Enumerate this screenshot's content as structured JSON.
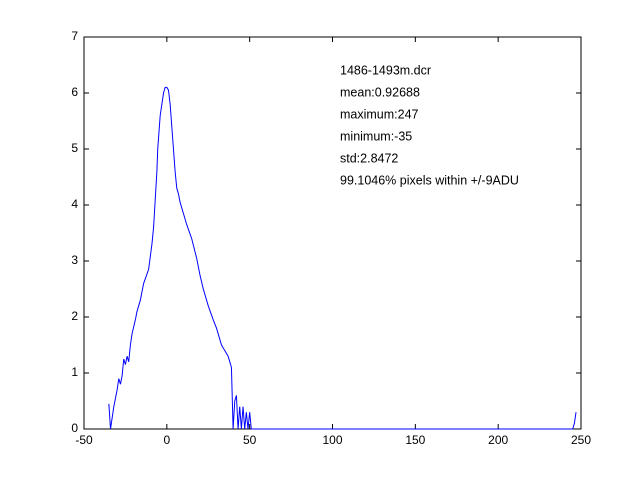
{
  "chart_data": {
    "type": "line",
    "annotations": [
      "1486-1493m.dcr",
      "mean:0.92688",
      "maximum:247",
      "minimum:-35",
      "std:2.8472",
      "99.1046% pixels within +/-9ADU"
    ],
    "series": [
      {
        "color": "#0000ff",
        "x": [
          -35,
          -34,
          -33,
          -32,
          -30,
          -29,
          -28,
          -27,
          -26,
          -25,
          -24,
          -23,
          -22,
          -21,
          -19,
          -18,
          -16,
          -14,
          -11,
          -9,
          -8,
          -7,
          -6,
          -5.5,
          -4,
          -3,
          -2,
          -1,
          0,
          1,
          2,
          3,
          4,
          5,
          6,
          7,
          8,
          10,
          12,
          15,
          18,
          20,
          22,
          25,
          28,
          30,
          33,
          35,
          37,
          38,
          39,
          40,
          41,
          42,
          43,
          44,
          45,
          46,
          47,
          48,
          49,
          50,
          51,
          245,
          246,
          247
        ],
        "values": [
          0.45,
          0,
          0.2,
          0.4,
          0.7,
          0.9,
          0.8,
          0.95,
          1.25,
          1.15,
          1.3,
          1.2,
          1.5,
          1.7,
          1.95,
          2.1,
          2.3,
          2.6,
          2.85,
          3.3,
          3.6,
          4.1,
          4.6,
          5.0,
          5.6,
          5.8,
          6.0,
          6.1,
          6.1,
          6.05,
          5.8,
          5.4,
          5.0,
          4.6,
          4.3,
          4.2,
          4.05,
          3.85,
          3.65,
          3.4,
          3.05,
          2.75,
          2.5,
          2.2,
          1.95,
          1.8,
          1.5,
          1.4,
          1.3,
          1.2,
          1.1,
          0,
          0.5,
          0.6,
          0,
          0.4,
          0,
          0.4,
          0,
          0.3,
          0,
          0.3,
          0,
          0,
          0.1,
          0.3
        ]
      }
    ],
    "xlim": [
      -50,
      250
    ],
    "xticks": [
      -50,
      0,
      50,
      100,
      150,
      200,
      250
    ],
    "ylim": [
      0,
      7
    ],
    "yticks": [
      0,
      1,
      2,
      3,
      4,
      5,
      6,
      7
    ]
  }
}
